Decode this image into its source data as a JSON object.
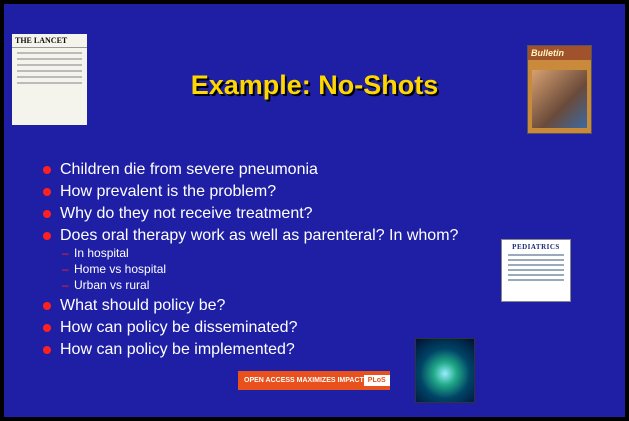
{
  "title": "Example: No-Shots",
  "bullets": [
    {
      "text": "Children die from severe pneumonia"
    },
    {
      "text": "How prevalent is the problem?"
    },
    {
      "text": "Why do they not receive treatment?"
    },
    {
      "text": "Does oral therapy work as well as parenteral? In whom?",
      "sub": [
        "In hospital",
        "Home vs hospital",
        "Urban vs rural"
      ]
    },
    {
      "text": "What should policy be?"
    },
    {
      "text": "How can policy be disseminated?"
    },
    {
      "text": "How can policy be implemented?"
    }
  ],
  "images": {
    "lancet": "THE LANCET",
    "bulletin": "Bulletin",
    "pediatrics": "PEDIATRICS",
    "banner": "OPEN ACCESS MAXIMIZES IMPACT",
    "plos": "PLoS"
  }
}
